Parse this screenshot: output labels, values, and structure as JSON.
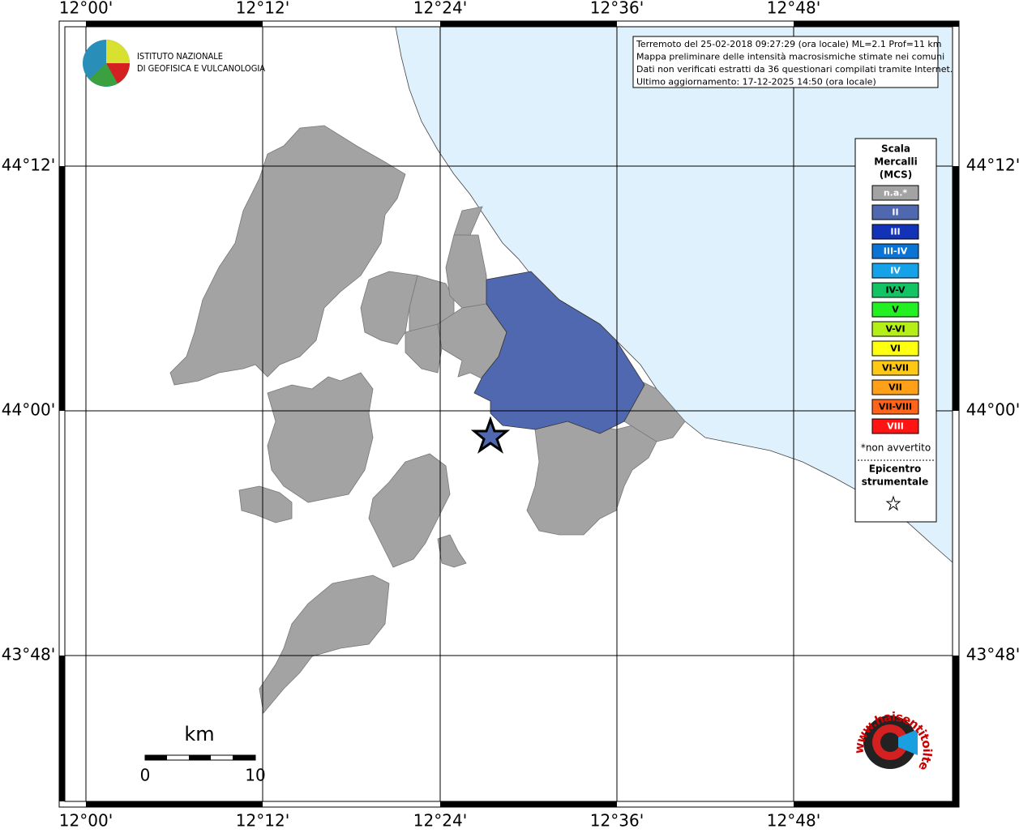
{
  "map": {
    "lon_labels": [
      "12°00'",
      "12°12'",
      "12°24'",
      "12°36'",
      "12°48'"
    ],
    "lat_labels": [
      "44°12'",
      "44°00'",
      "43°48'"
    ],
    "logo": {
      "line1": "ISTITUTO NAZIONALE",
      "line2": "DI GEOFISICA E VULCANOLOGIA"
    },
    "info_lines": [
      "Terremoto del 25-02-2018 09:27:29 (ora locale) ML=2.1 Prof=11 km",
      "Mappa preliminare delle intensità macrosismiche stimate nei comuni",
      "Dati non verificati estratti da 36 questionari compilati tramite Internet.",
      "Ultimo aggiornamento: 17-12-2025 14:50 (ora locale)"
    ],
    "legend": {
      "title": [
        "Scala",
        "Mercalli",
        "(MCS)"
      ],
      "items": [
        {
          "label": "n.a.*",
          "color": "#a3a3a3",
          "text_color": "#ffffff"
        },
        {
          "label": "II",
          "color": "#5068b0",
          "text_color": "#ffffff"
        },
        {
          "label": "III",
          "color": "#1232b8",
          "text_color": "#ffffff"
        },
        {
          "label": "III-IV",
          "color": "#0a74d4",
          "text_color": "#ffffff"
        },
        {
          "label": "IV",
          "color": "#16a2e8",
          "text_color": "#ffffff"
        },
        {
          "label": "IV-V",
          "color": "#12c464",
          "text_color": "#000000"
        },
        {
          "label": "V",
          "color": "#22f022",
          "text_color": "#000000"
        },
        {
          "label": "V-VI",
          "color": "#b4f018",
          "text_color": "#000000"
        },
        {
          "label": "VI",
          "color": "#ffff10",
          "text_color": "#000000"
        },
        {
          "label": "VI-VII",
          "color": "#ffc814",
          "text_color": "#000000"
        },
        {
          "label": "VII",
          "color": "#ffa018",
          "text_color": "#000000"
        },
        {
          "label": "VII-VIII",
          "color": "#ff6418",
          "text_color": "#000000"
        },
        {
          "label": "VIII",
          "color": "#ff1414",
          "text_color": "#ffffff"
        }
      ],
      "note": "*non avvertito",
      "epicenter": [
        "Epicentro",
        "strumentale"
      ]
    },
    "scale": {
      "unit": "km",
      "start": "0",
      "end": "10"
    },
    "site_logo": "www.haisentitoilterremoto.it"
  }
}
